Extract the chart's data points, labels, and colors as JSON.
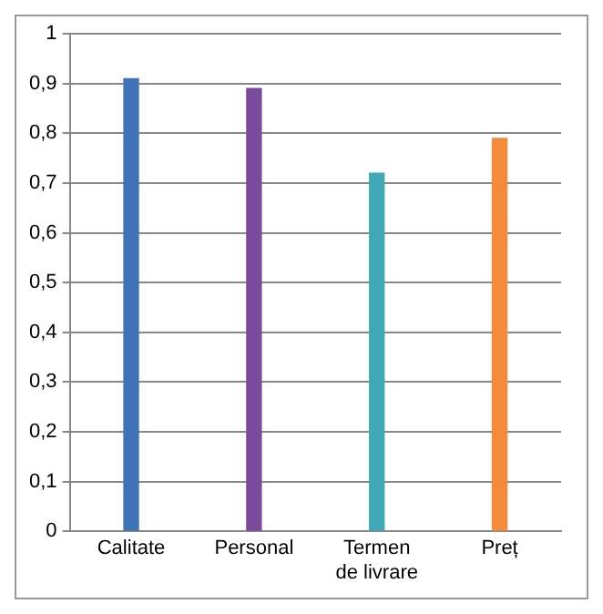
{
  "chart_data": {
    "type": "bar",
    "categories": [
      "Calitate",
      "Personal",
      "Termen de livrare",
      "Preț"
    ],
    "values": [
      0.91,
      0.89,
      0.72,
      0.79
    ],
    "colors": [
      "#3f73b8",
      "#7b4a9c",
      "#3fa9b7",
      "#f58a3a"
    ],
    "ylim": [
      0,
      1
    ],
    "yticks": [
      {
        "value": 0,
        "label": "0"
      },
      {
        "value": 0.1,
        "label": "0,1"
      },
      {
        "value": 0.2,
        "label": "0,2"
      },
      {
        "value": 0.3,
        "label": "0,3"
      },
      {
        "value": 0.4,
        "label": "0,4"
      },
      {
        "value": 0.5,
        "label": "0,5"
      },
      {
        "value": 0.6,
        "label": "0,6"
      },
      {
        "value": 0.7,
        "label": "0,7"
      },
      {
        "value": 0.8,
        "label": "0,8"
      },
      {
        "value": 0.9,
        "label": "0,9"
      },
      {
        "value": 1,
        "label": "1"
      }
    ],
    "grid": "y",
    "legend": false
  }
}
